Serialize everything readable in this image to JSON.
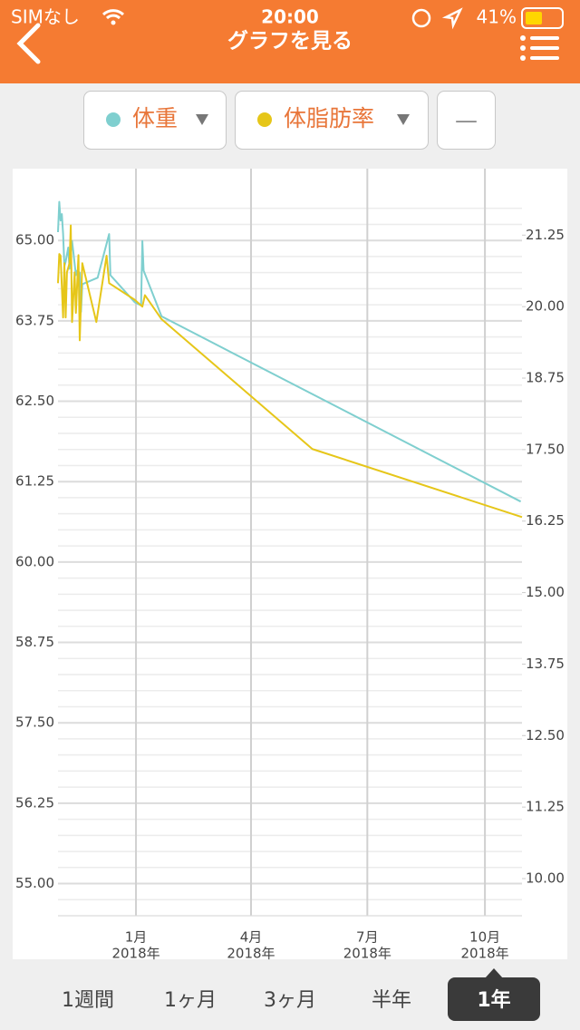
{
  "status_bar": {
    "carrier": "SIMなし",
    "time": "20:00",
    "battery": "41%"
  },
  "header": {
    "title": "グラフを見る"
  },
  "toolbar": {
    "third_button": "—"
  },
  "tabs": [
    "1週間",
    "1ヶ月",
    "3ヶ月",
    "半年",
    "1年"
  ],
  "active_tab": 4,
  "chart_data": {
    "type": "line",
    "xlim": [
      -61,
      302
    ],
    "xticks": [
      {
        "value": 0,
        "label": "1月"
      },
      {
        "value": 90,
        "label": "4月"
      },
      {
        "value": 181,
        "label": "7月"
      },
      {
        "value": 273,
        "label": "10月"
      }
    ],
    "xtick_years": [
      "2018年",
      "2018年",
      "2018年",
      "2018年"
    ],
    "ylim": [
      54.5,
      65.75
    ],
    "yticks": [
      {
        "value": 55,
        "label": "55.00"
      },
      {
        "value": 56.25,
        "label": "56.25"
      },
      {
        "value": 57.5,
        "label": "57.50"
      },
      {
        "value": 58.75,
        "label": "58.75"
      },
      {
        "value": 60,
        "label": "60.00"
      },
      {
        "value": 61.25,
        "label": "61.25"
      },
      {
        "value": 62.5,
        "label": "62.50"
      },
      {
        "value": 63.75,
        "label": "63.75"
      },
      {
        "value": 65,
        "label": "65.00"
      }
    ],
    "y2lim": [
      9.35,
      22.0
    ],
    "y2ticks": [
      {
        "value": 10,
        "label": "10.00"
      },
      {
        "value": 11.25,
        "label": "11.25"
      },
      {
        "value": 12.5,
        "label": "12.50"
      },
      {
        "value": 13.75,
        "label": "13.75"
      },
      {
        "value": 15,
        "label": "15.00"
      },
      {
        "value": 16.25,
        "label": "16.25"
      },
      {
        "value": 17.5,
        "label": "17.50"
      },
      {
        "value": 18.75,
        "label": "18.75"
      },
      {
        "value": 20,
        "label": "20.00"
      },
      {
        "value": 21.25,
        "label": "21.25"
      }
    ],
    "grid": true,
    "series": [
      {
        "name": "体重",
        "color": "#7fcfcf",
        "x": [
          -61,
          -60,
          -59,
          -58,
          -57,
          -56,
          -55,
          -53,
          -52,
          -50,
          -49,
          -47,
          -46,
          -44,
          -43,
          -42,
          -30,
          -21,
          -20,
          -1,
          4,
          5,
          6,
          20,
          301
        ],
        "values": [
          65.13,
          65.6,
          65.31,
          65.41,
          65.1,
          64.6,
          64.67,
          64.89,
          64.56,
          64.99,
          64.82,
          64.46,
          64.53,
          64.5,
          63.89,
          64.32,
          64.42,
          65.1,
          64.46,
          64.04,
          63.99,
          64.99,
          64.53,
          63.82,
          60.94
        ]
      },
      {
        "name": "体脂肪率",
        "color": "#e6c619",
        "axis": "y2",
        "x": [
          -61,
          -60,
          -59,
          -57,
          -56,
          -55,
          -54,
          -52,
          -51,
          -50,
          -48,
          -47,
          -45,
          -44,
          -42,
          -31,
          -23,
          -21,
          -1,
          5,
          7,
          20,
          138,
          302
        ],
        "values": [
          20.41,
          20.92,
          20.89,
          19.81,
          20.76,
          19.81,
          20.6,
          20.76,
          21.42,
          19.73,
          20.6,
          19.89,
          20.9,
          19.41,
          20.76,
          19.73,
          20.89,
          20.41,
          20.12,
          20.0,
          20.2,
          19.78,
          17.51,
          16.32
        ]
      }
    ]
  }
}
